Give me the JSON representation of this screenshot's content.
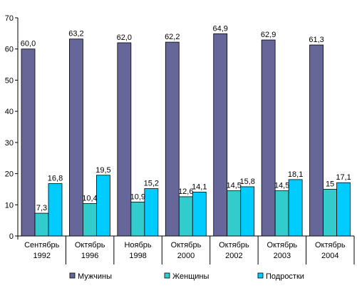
{
  "chart_data": {
    "type": "bar",
    "title": "",
    "xlabel": "",
    "ylabel": "",
    "ylim": [
      0,
      70
    ],
    "yticks": [
      0,
      10,
      20,
      30,
      40,
      50,
      60,
      70
    ],
    "grid": false,
    "legend_position": "bottom",
    "categories": [
      [
        "Сентябрь",
        "1992"
      ],
      [
        "Октябрь",
        "1996"
      ],
      [
        "Ноябрь",
        "1998"
      ],
      [
        "Октябрь",
        "2000"
      ],
      [
        "Октябрь",
        "2002"
      ],
      [
        "Октябрь",
        "2003"
      ],
      [
        "Октябрь",
        "2004"
      ]
    ],
    "series": [
      {
        "name": "Мужчины",
        "color": "#666699",
        "values": [
          60.0,
          63.2,
          62.0,
          62.2,
          64.9,
          62.9,
          61.3
        ],
        "labels": [
          "60,0",
          "63,2",
          "62,0",
          "62,2",
          "64,9",
          "62,9",
          "61,3"
        ]
      },
      {
        "name": "Женщины",
        "color": "#33CCCC",
        "values": [
          7.3,
          10.4,
          10.9,
          12.6,
          14.5,
          14.5,
          15
        ],
        "labels": [
          "7,3",
          "10,4",
          "10,9",
          "12,6",
          "14,5",
          "14,5",
          "15"
        ]
      },
      {
        "name": "Подростки",
        "color": "#00CCFF",
        "values": [
          16.8,
          19.5,
          15.2,
          14.1,
          15.8,
          18.1,
          17.1
        ],
        "labels": [
          "16,8",
          "19,5",
          "15,2",
          "14,1",
          "15,8",
          "18,1",
          "17,1"
        ]
      }
    ]
  }
}
